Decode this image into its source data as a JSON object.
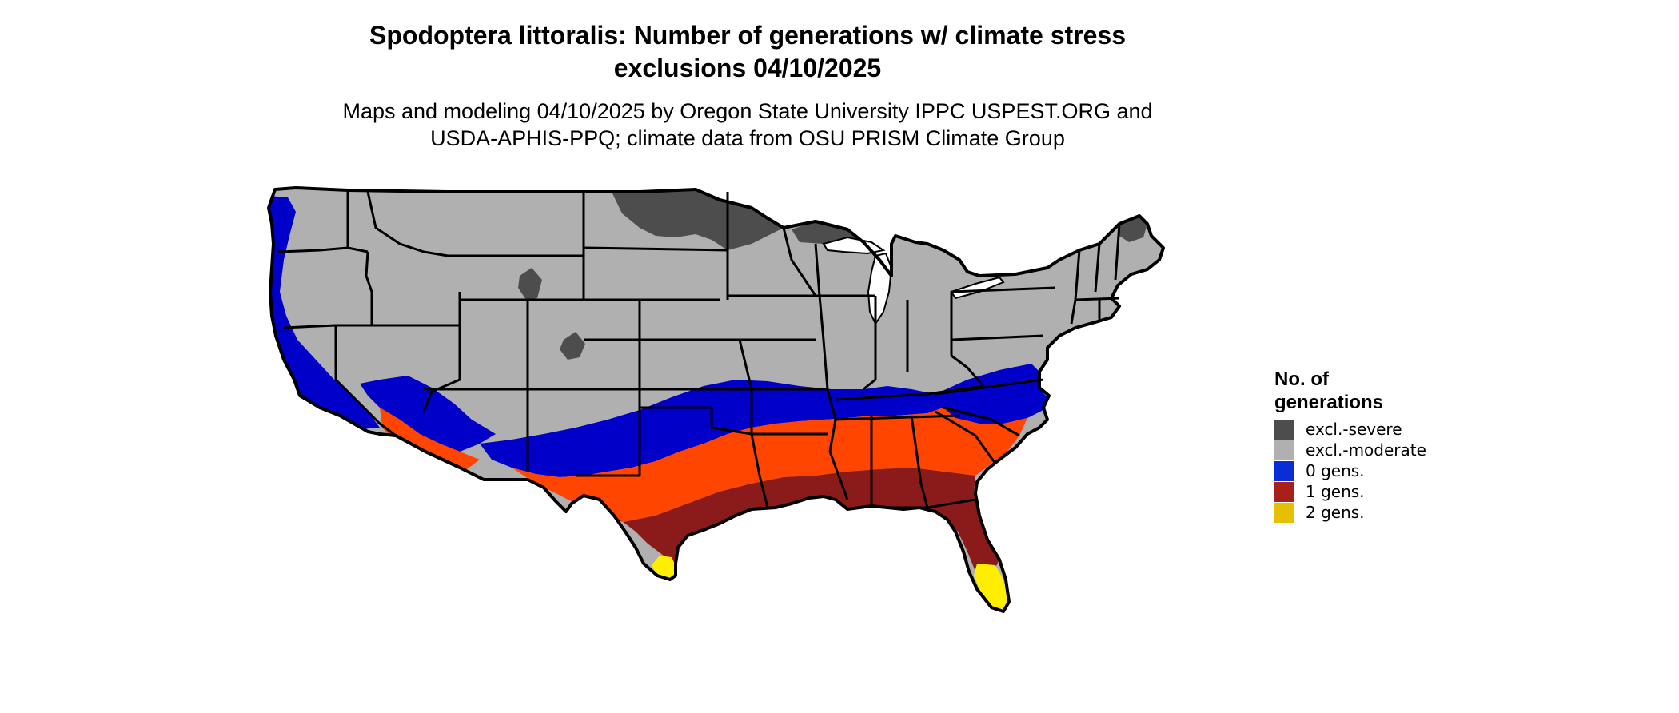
{
  "title": "Spodoptera littoralis: Number of generations w/ climate stress exclusions 04/10/2025",
  "title_lines": [
    "Spodoptera littoralis: Number of generations w/ climate stress",
    "exclusions 04/10/2025"
  ],
  "subtitle_lines": [
    "Maps and modeling 04/10/2025 by Oregon State University IPPC USPEST.ORG and",
    "USDA-APHIS-PPQ; climate data from OSU PRISM Climate Group"
  ],
  "legend": {
    "title_lines": [
      "No. of",
      "generations"
    ],
    "items": [
      {
        "label": "excl.-severe",
        "color": "#4d4d4d"
      },
      {
        "label": "excl.-moderate",
        "color": "#b0b0b0"
      },
      {
        "label": "0 gens.",
        "color": "#0a2ed6"
      },
      {
        "label": "1 gens.",
        "color": "#a8201a"
      },
      {
        "label": "2 gens.",
        "color": "#e6c000"
      }
    ]
  },
  "map": {
    "region": "Contiguous United States",
    "colors": {
      "excl_severe": "#4d4d4d",
      "excl_moderate": "#b0b0b0",
      "zero_gens": "#0000c8",
      "one_gens_orange": "#ff4500",
      "one_gens_red": "#8b1a1a",
      "two_gens": "#ffee00",
      "border": "#000000"
    }
  }
}
